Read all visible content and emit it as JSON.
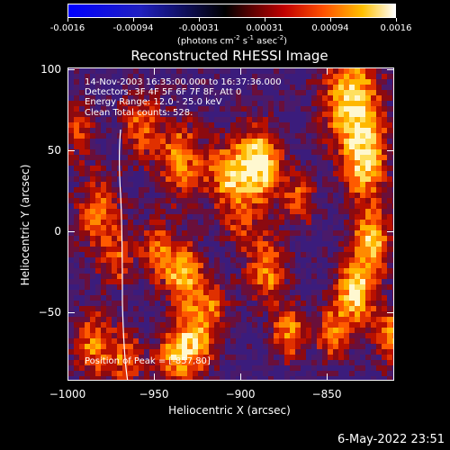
{
  "colorbar": {
    "ticks": [
      "-0.0016",
      "-0.00094",
      "-0.00031",
      "0.00031",
      "0.00094",
      "0.0016"
    ],
    "units_prefix": "(photons cm",
    "units_sup1": "-2",
    "units_mid1": " s",
    "units_sup2": "-1",
    "units_mid2": " asec",
    "units_sup3": "-2",
    "units_suffix": ")",
    "gradient_colors": [
      "#0000ff",
      "#000000",
      "#c00000",
      "#ff5000",
      "#ffc000",
      "#ffffff"
    ]
  },
  "title": "Reconstructed RHESSI Image",
  "annotations": {
    "time_range": "14-Nov-2003 16:35:00.000 to 16:37:36.000",
    "detectors": "Detectors: 3F 4F 5F 6F 7F 8F, Att 0",
    "energy_range": "Energy Range: 12.0 - 25.0 keV",
    "method": "Clean    Total counts: 528.",
    "peak_position": "Position of Peak = [-857,80]"
  },
  "axes": {
    "xlabel": "Heliocentric X (arcsec)",
    "ylabel": "Heliocentric Y (arcsec)",
    "xticks": [
      "-1000",
      "-950",
      "-900",
      "-850"
    ],
    "yticks": [
      "100",
      "50",
      "0",
      "-50"
    ],
    "xlim": [
      -1000,
      -811
    ],
    "ylim": [
      -92,
      101
    ]
  },
  "footer": {
    "date": "6-May-2022 23:51"
  }
}
